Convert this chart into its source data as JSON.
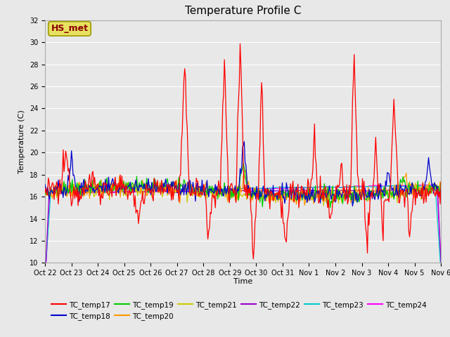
{
  "title": "Temperature Profile C",
  "xlabel": "Time",
  "ylabel": "Temperature (C)",
  "ylim": [
    10,
    32
  ],
  "yticks": [
    10,
    12,
    14,
    16,
    18,
    20,
    22,
    24,
    26,
    28,
    30,
    32
  ],
  "bg_color": "#e8e8e8",
  "annotation_text": "HS_met",
  "annotation_color": "#8B0000",
  "annotation_bg": "#e8e060",
  "series_colors": {
    "TC_temp17": "#ff0000",
    "TC_temp18": "#0000cc",
    "TC_temp19": "#00cc00",
    "TC_temp20": "#ff9900",
    "TC_temp21": "#cccc00",
    "TC_temp22": "#9900cc",
    "TC_temp23": "#00cccc",
    "TC_temp24": "#ff00ff"
  },
  "x_tick_labels": [
    "Oct 22",
    "Oct 23",
    "Oct 24",
    "Oct 25",
    "Oct 26",
    "Oct 27",
    "Oct 28",
    "Oct 29",
    "Oct 30",
    "Oct 31",
    "Nov 1",
    "Nov 2",
    "Nov 3",
    "Nov 4",
    "Nov 5",
    "Nov 6"
  ],
  "n_points": 480
}
